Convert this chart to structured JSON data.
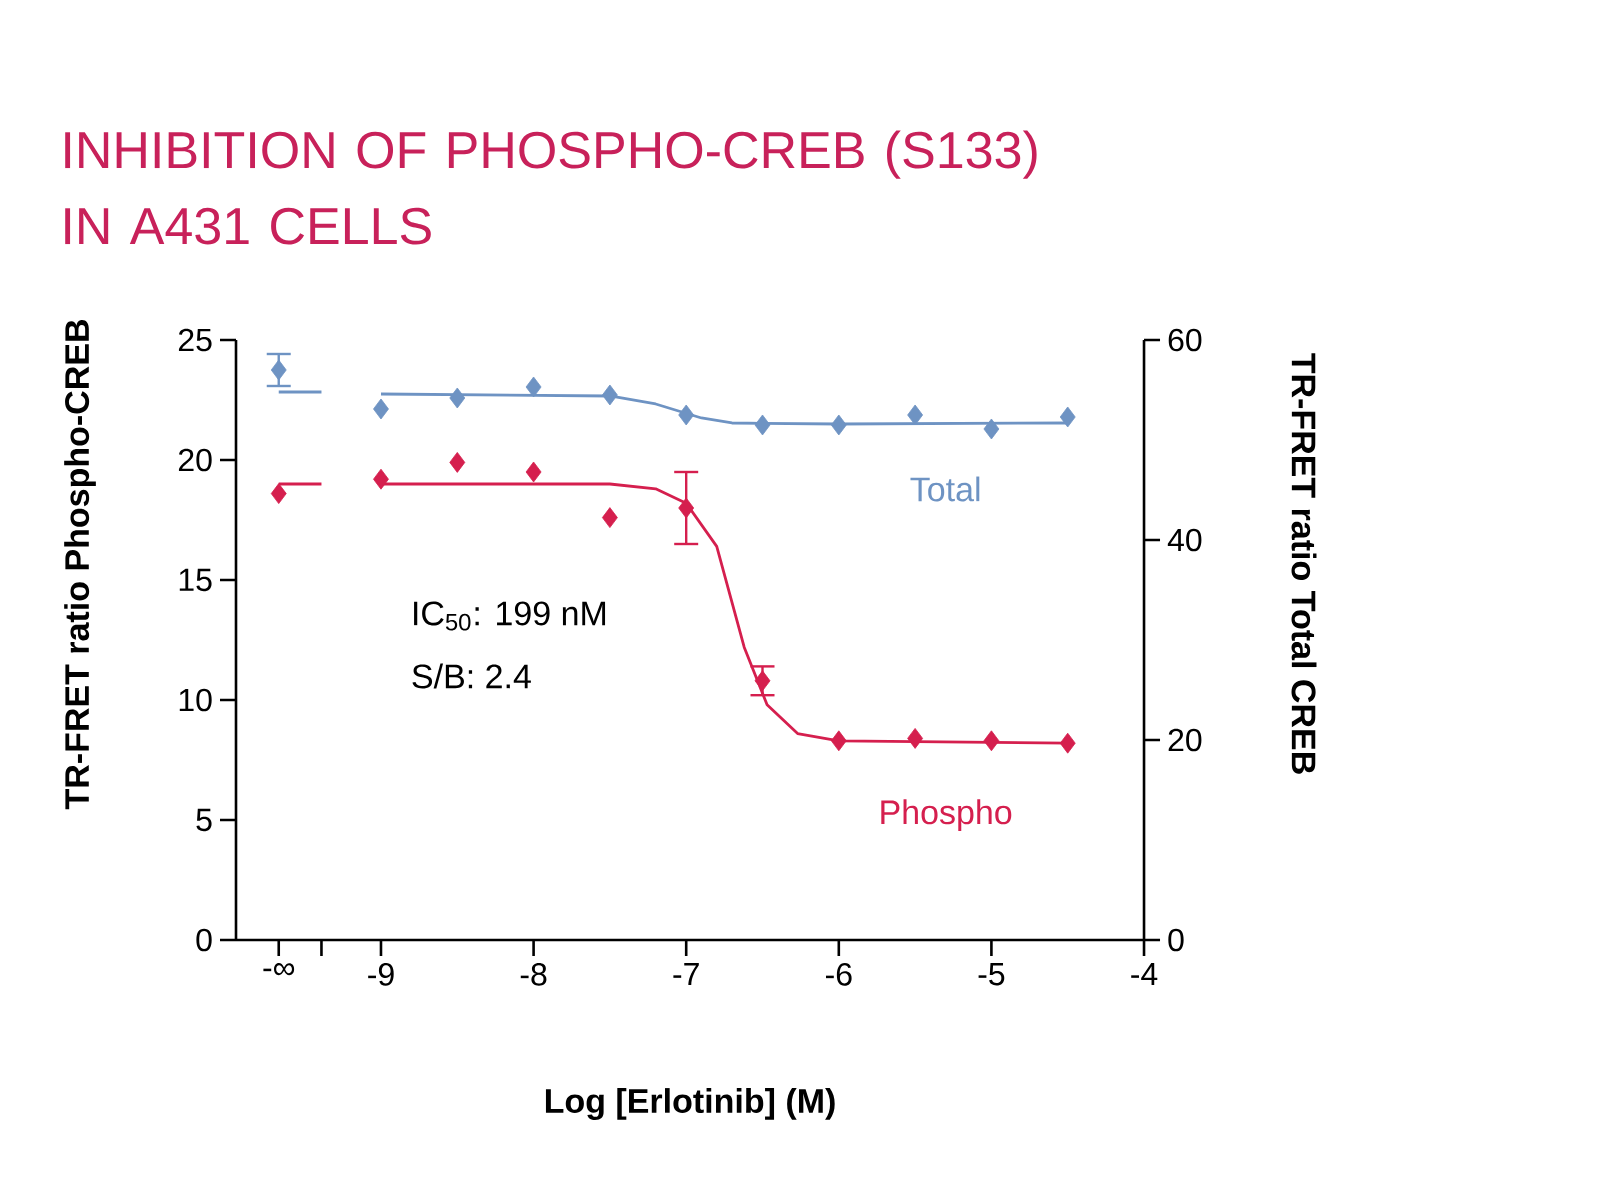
{
  "chart_data": {
    "type": "line",
    "title": "INHIBITION OF PHOSPHO-CREB (S133) IN A431 CELLS",
    "xlabel": "Log [Erlotinib] (M)",
    "ylabel": "TR-FRET ratio Phospho-CREB",
    "y2label": "TR-FRET ratio Total CREB",
    "xlim": [
      -9.95,
      -4
    ],
    "xticks": [
      {
        "value": -9.67,
        "label": "-∞"
      },
      {
        "value": -9.39,
        "label": null
      },
      -9,
      -8,
      -7,
      -6,
      -5,
      -4
    ],
    "ylim": [
      0,
      25
    ],
    "yticks": [
      0,
      5,
      10,
      15,
      20,
      25
    ],
    "y2lim": [
      0,
      60
    ],
    "y2ticks": [
      0,
      20,
      40,
      60
    ],
    "annotations": [
      "IC$_{50}$: 199 nM",
      "S/B: 2.4"
    ],
    "series": [
      {
        "name": "Phospho",
        "type": "scatter",
        "marker": "diamond",
        "color": "#d51f4e",
        "x": [
          -9.67,
          -9,
          -8.5,
          -8,
          -7.5,
          -7,
          -6.5,
          -6,
          -5.5,
          -5,
          -4.5
        ],
        "values": [
          18.6,
          19.2,
          19.9,
          19.5,
          17.6,
          18.0,
          10.8,
          8.3,
          8.4,
          8.3,
          8.2
        ],
        "errors": [
          null,
          null,
          null,
          null,
          null,
          1.5,
          0.6,
          null,
          null,
          null,
          null
        ]
      },
      {
        "color": "#d51f4e",
        "x": [
          -9.67,
          -9.39
        ],
        "values": [
          19.0,
          19.0
        ]
      },
      {
        "color": "#d51f4e",
        "x": [
          -9,
          -7.5,
          -7.2,
          -7,
          -6.8,
          -6.62,
          -6.47,
          -6.27,
          -6,
          -4.5
        ],
        "values": [
          19.0,
          19.0,
          18.8,
          18.2,
          16.4,
          12.2,
          9.8,
          8.6,
          8.3,
          8.2
        ]
      },
      {
        "name": "Total",
        "type": "scatter",
        "marker": "diamond",
        "axis": "y2",
        "color": "#6e93c3",
        "x": [
          -9.67,
          -9,
          -8.5,
          -8,
          -7.5,
          -7,
          -6.5,
          -6,
          -5.5,
          -5,
          -4.5
        ],
        "values": [
          57.0,
          53.1,
          54.2,
          55.3,
          54.5,
          52.5,
          51.5,
          51.5,
          52.5,
          51.1,
          52.3
        ],
        "errors": [
          1.6,
          null,
          null,
          null,
          null,
          null,
          null,
          null,
          null,
          null,
          null
        ]
      },
      {
        "axis": "y2",
        "color": "#6e93c3",
        "x": [
          -9.67,
          -9.39
        ],
        "values": [
          54.8,
          54.8
        ]
      },
      {
        "axis": "y2",
        "color": "#6e93c3",
        "x": [
          -9,
          -7.5,
          -7.2,
          -6.9,
          -6.7,
          -6,
          -4.5
        ],
        "values": [
          54.6,
          54.4,
          53.6,
          52.2,
          51.7,
          51.6,
          51.7
        ]
      }
    ]
  }
}
